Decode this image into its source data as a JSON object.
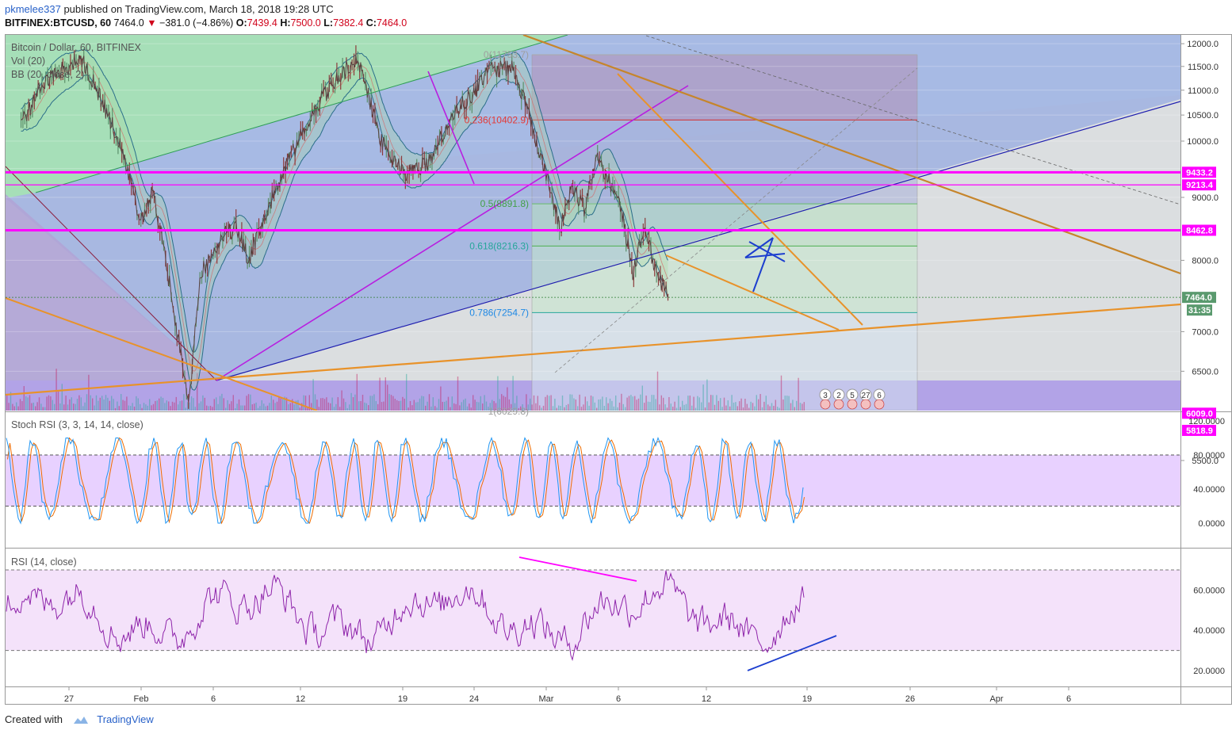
{
  "header": {
    "author": "pkmelee337",
    "published_text": "published on TradingView.com, March 18, 2018 19:28 UTC",
    "symbol": "BITFINEX:BTCUSD, 60",
    "last": "7464.0",
    "change": "−381.0 (−4.86%)",
    "o_label": "O:",
    "o": "7439.4",
    "h_label": "H:",
    "h": "7500.0",
    "l_label": "L:",
    "l": "7382.4",
    "c_label": "C:",
    "c": "7464.0"
  },
  "main_legend": [
    "Bitcoin / Dollar, 60, BITFINEX",
    "Vol (20)",
    "BB (20, close, 2)"
  ],
  "stoch_legend": "Stoch RSI (3, 3, 14, 14, close)",
  "rsi_legend": "RSI (14, close)",
  "footer": {
    "created_with": "Created with",
    "brand": "TradingView"
  },
  "colors": {
    "magenta_level": "#ff00ff",
    "orange_trend": "#e8922a",
    "blue_trend": "#1f1fb0",
    "purple_trend": "#b81ee0",
    "price_label": "#5a9a6e",
    "rsi_line": "#8e24aa",
    "stoch_k": "#2196f3",
    "stoch_d": "#ef6c00"
  },
  "chart_data": [
    {
      "type": "line",
      "title": "Bitcoin / Dollar, 60, BITFINEX",
      "price_axis_ticks": [
        12000,
        11500,
        11000,
        10500,
        10000,
        9500,
        9000,
        8000,
        7000,
        6500,
        5500
      ],
      "price_axis_tick_labels": [
        "12000.0",
        "11500.0",
        "11000.0",
        "10500.0",
        "10000.0",
        "",
        "9000.0",
        "8000.0",
        "7000.0",
        "6500.0",
        "5500.0"
      ],
      "time_axis_labels": [
        "27",
        "Feb",
        "6",
        "12",
        "19",
        "24",
        "Mar",
        "6",
        "12",
        "19",
        "26",
        "Apr",
        "6"
      ],
      "price_path": [
        {
          "x": "Jan 23",
          "y": 10300
        },
        {
          "x": "Jan 25",
          "y": 11200
        },
        {
          "x": "Jan 28",
          "y": 11700
        },
        {
          "x": "Jan 31",
          "y": 10100
        },
        {
          "x": "Feb 2",
          "y": 8600
        },
        {
          "x": "Feb 3",
          "y": 9100
        },
        {
          "x": "Feb 5",
          "y": 7000
        },
        {
          "x": "Feb 6",
          "y": 6100
        },
        {
          "x": "Feb 7",
          "y": 7800
        },
        {
          "x": "Feb 9",
          "y": 8400
        },
        {
          "x": "Feb 10",
          "y": 8500
        },
        {
          "x": "Feb 11",
          "y": 8000
        },
        {
          "x": "Feb 14",
          "y": 9500
        },
        {
          "x": "Feb 17",
          "y": 10800
        },
        {
          "x": "Feb 20",
          "y": 11700
        },
        {
          "x": "Feb 22",
          "y": 10000
        },
        {
          "x": "Feb 24",
          "y": 9400
        },
        {
          "x": "Feb 26",
          "y": 9600
        },
        {
          "x": "Feb 28",
          "y": 10500
        },
        {
          "x": "Mar 2",
          "y": 11000
        },
        {
          "x": "Mar 3",
          "y": 11400
        },
        {
          "x": "Mar 5",
          "y": 11500
        },
        {
          "x": "Mar 7",
          "y": 10000
        },
        {
          "x": "Mar 9",
          "y": 8500
        },
        {
          "x": "Mar 10",
          "y": 9200
        },
        {
          "x": "Mar 11",
          "y": 8800
        },
        {
          "x": "Mar 12",
          "y": 9700
        },
        {
          "x": "Mar 14",
          "y": 8900
        },
        {
          "x": "Mar 15",
          "y": 7800
        },
        {
          "x": "Mar 16",
          "y": 8500
        },
        {
          "x": "Mar 17",
          "y": 7800
        },
        {
          "x": "Mar 18",
          "y": 7464
        }
      ],
      "horizontal_levels": [
        {
          "label": "9433.2",
          "value": 9433.2
        },
        {
          "label": "9213.4",
          "value": 9213.4
        },
        {
          "label": "8462.8",
          "value": 8462.8
        },
        {
          "label": "6009.0",
          "value": 6009.0
        },
        {
          "label": "5818.9",
          "value": 5818.9
        }
      ],
      "last_price_label": "7464.0",
      "countdown_label": "31:35",
      "fibonacci": [
        {
          "label": "0(11753.7)",
          "value": 11753.7
        },
        {
          "label": "0.236(10402.9)",
          "value": 10402.9
        },
        {
          "label": "0.5(8891.8)",
          "value": 8891.8
        },
        {
          "label": "0.618(8216.3)",
          "value": 8216.3
        },
        {
          "label": "0.786(7254.7)",
          "value": 7254.7
        },
        {
          "label": "1(6029.8)",
          "value": 6029.8
        }
      ],
      "event_badges": [
        "3",
        "2",
        "5",
        "27",
        "6"
      ]
    },
    {
      "type": "line",
      "title": "Stoch RSI (3, 3, 14, 14, close)",
      "axis_ticks": [
        120,
        80,
        40,
        0
      ],
      "axis_tick_labels": [
        "120.0000",
        "80.0000",
        "40.0000",
        "0.0000"
      ],
      "band": [
        20,
        80
      ],
      "series": [
        {
          "name": "",
          "color": "#2196f3"
        },
        {
          "name": "",
          "color": "#ef6c00"
        }
      ]
    },
    {
      "type": "line",
      "title": "RSI (14, close)",
      "axis_ticks": [
        60,
        40,
        20
      ],
      "axis_tick_labels": [
        "60.0000",
        "40.0000",
        "20.0000"
      ],
      "band": [
        30,
        70
      ],
      "series": [
        {
          "name": "",
          "color": "#8e24aa"
        }
      ]
    }
  ]
}
